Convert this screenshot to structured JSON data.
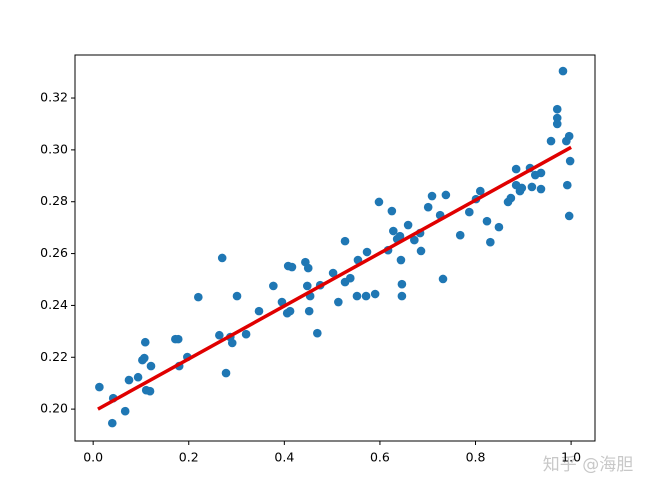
{
  "chart_data": {
    "type": "scatter",
    "xlim": [
      -0.038,
      1.05
    ],
    "ylim": [
      0.1877,
      0.3366
    ],
    "xticks": [
      {
        "value": 0.0,
        "label": "0.0"
      },
      0.2,
      0.4,
      0.6,
      0.8,
      {
        "value": 1.0,
        "label": "1.0"
      }
    ],
    "yticks": [
      {
        "value": 0.2,
        "label": "0.20"
      },
      0.22,
      0.24,
      0.26,
      0.28,
      {
        "value": 0.3,
        "label": "0.30"
      },
      0.32
    ],
    "series": [
      {
        "type": "scatter",
        "color": "#1f77b4",
        "x": [
          0.013,
          0.042,
          0.04,
          0.067,
          0.075,
          0.094,
          0.103,
          0.109,
          0.107,
          0.111,
          0.119,
          0.121,
          0.172,
          0.178,
          0.18,
          0.197,
          0.22,
          0.264,
          0.27,
          0.278,
          0.287,
          0.291,
          0.301,
          0.32,
          0.347,
          0.377,
          0.395,
          0.406,
          0.412,
          0.408,
          0.416,
          0.444,
          0.45,
          0.448,
          0.454,
          0.452,
          0.469,
          0.475,
          0.502,
          0.513,
          0.527,
          0.527,
          0.538,
          0.552,
          0.554,
          0.571,
          0.573,
          0.59,
          0.598,
          0.617,
          0.625,
          0.628,
          0.636,
          0.642,
          0.644,
          0.646,
          0.646,
          0.659,
          0.672,
          0.684,
          0.686,
          0.701,
          0.709,
          0.726,
          0.732,
          0.738,
          0.768,
          0.787,
          0.801,
          0.81,
          0.824,
          0.831,
          0.849,
          0.868,
          0.874,
          0.885,
          0.885,
          0.893,
          0.897,
          0.914,
          0.918,
          0.925,
          0.937,
          0.937,
          0.958,
          0.971,
          0.971,
          0.971,
          0.983,
          0.99,
          0.992,
          0.996,
          0.998,
          0.996
        ],
        "values": [
          0.2085,
          0.2042,
          0.1946,
          0.1992,
          0.2112,
          0.2123,
          0.2189,
          0.2258,
          0.2197,
          0.2073,
          0.2069,
          0.2166,
          0.227,
          0.227,
          0.2166,
          0.2201,
          0.2432,
          0.2285,
          0.2583,
          0.2139,
          0.2278,
          0.2255,
          0.2436,
          0.2289,
          0.2378,
          0.2475,
          0.2413,
          0.237,
          0.2378,
          0.2552,
          0.2548,
          0.2567,
          0.2544,
          0.2475,
          0.2436,
          0.2378,
          0.2293,
          0.2478,
          0.2525,
          0.2413,
          0.2648,
          0.249,
          0.2505,
          0.2436,
          0.2575,
          0.2436,
          0.2606,
          0.2444,
          0.2799,
          0.2613,
          0.2764,
          0.2687,
          0.2656,
          0.2667,
          0.2575,
          0.2482,
          0.2436,
          0.271,
          0.2652,
          0.2679,
          0.261,
          0.2779,
          0.2822,
          0.2748,
          0.2502,
          0.2826,
          0.2671,
          0.276,
          0.281,
          0.2841,
          0.2725,
          0.2644,
          0.2702,
          0.2799,
          0.2814,
          0.2926,
          0.2864,
          0.2841,
          0.2853,
          0.293,
          0.2857,
          0.2903,
          0.2911,
          0.2849,
          0.3034,
          0.3157,
          0.3123,
          0.31,
          0.3304,
          0.3034,
          0.2864,
          0.3053,
          0.2957,
          0.2745
        ]
      },
      {
        "type": "line",
        "color": "#e00000",
        "x": [
          0.01,
          1.0
        ],
        "values": [
          0.2,
          0.301
        ]
      }
    ]
  },
  "watermark": "知乎 @海胆"
}
